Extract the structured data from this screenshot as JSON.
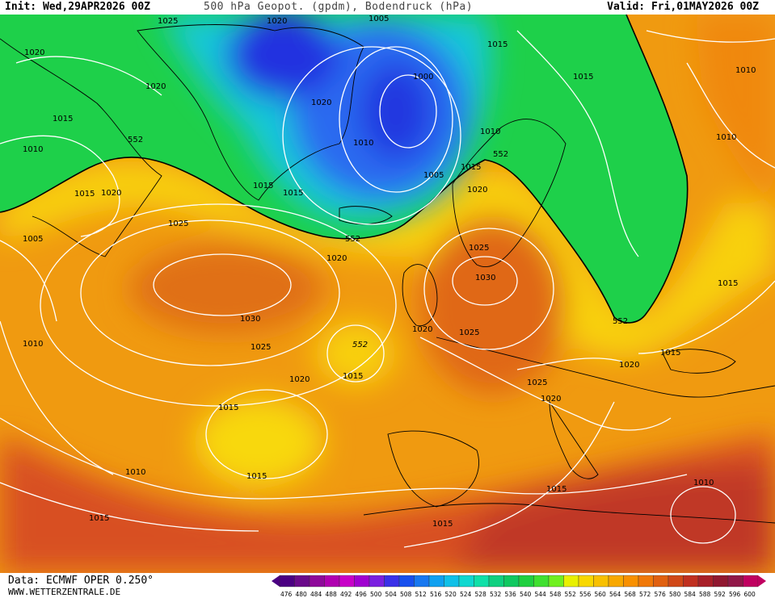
{
  "header": {
    "init": "Init: Wed,29APR2026 00Z",
    "title": "500 hPa Geopot. (gpdm), Bodendruck (hPa)",
    "valid": "Valid: Fri,01MAY2026 00Z"
  },
  "footer": {
    "data_source": "Data: ECMWF OPER 0.250°",
    "website": "WWW.WETTERZENTRALE.DE"
  },
  "legend": {
    "values": [
      "476",
      "480",
      "484",
      "488",
      "492",
      "496",
      "500",
      "504",
      "508",
      "512",
      "516",
      "520",
      "524",
      "528",
      "532",
      "536",
      "540",
      "544",
      "548",
      "552",
      "556",
      "560",
      "564",
      "568",
      "572",
      "576",
      "580",
      "584",
      "588",
      "592",
      "596",
      "600"
    ],
    "colors": [
      "#4b0082",
      "#6a0a8a",
      "#8e0a9a",
      "#b000b0",
      "#c800c8",
      "#a000d0",
      "#7a20e0",
      "#3a30e8",
      "#1850ee",
      "#1878f0",
      "#10a0f0",
      "#10c0e8",
      "#10d8d0",
      "#10e0a8",
      "#10d080",
      "#10c860",
      "#20d040",
      "#40e030",
      "#70f020",
      "#e8f000",
      "#f8d800",
      "#f8c000",
      "#f8a800",
      "#f89000",
      "#f07808",
      "#e06010",
      "#d04818",
      "#c03020",
      "#a82028",
      "#901830",
      "#901848",
      "#c00060"
    ]
  },
  "map_labels": {
    "isobars": [
      "1025",
      "1020",
      "1020",
      "1015",
      "1010",
      "1015",
      "1020",
      "1005",
      "1025",
      "1030",
      "1020",
      "1025",
      "1020",
      "1010",
      "1015",
      "1015",
      "1010",
      "1015",
      "1020",
      "1010",
      "1005",
      "1015",
      "1015",
      "1000",
      "1005",
      "1015",
      "1010",
      "1015",
      "1015",
      "1010",
      "1020",
      "1025",
      "1030",
      "1020",
      "1025",
      "1025",
      "1020",
      "1020",
      "1015",
      "1015",
      "1010",
      "1015",
      "1015",
      "1020",
      "1010",
      "1015"
    ],
    "geopotential": [
      "552",
      "552",
      "552",
      "552",
      "552"
    ]
  }
}
